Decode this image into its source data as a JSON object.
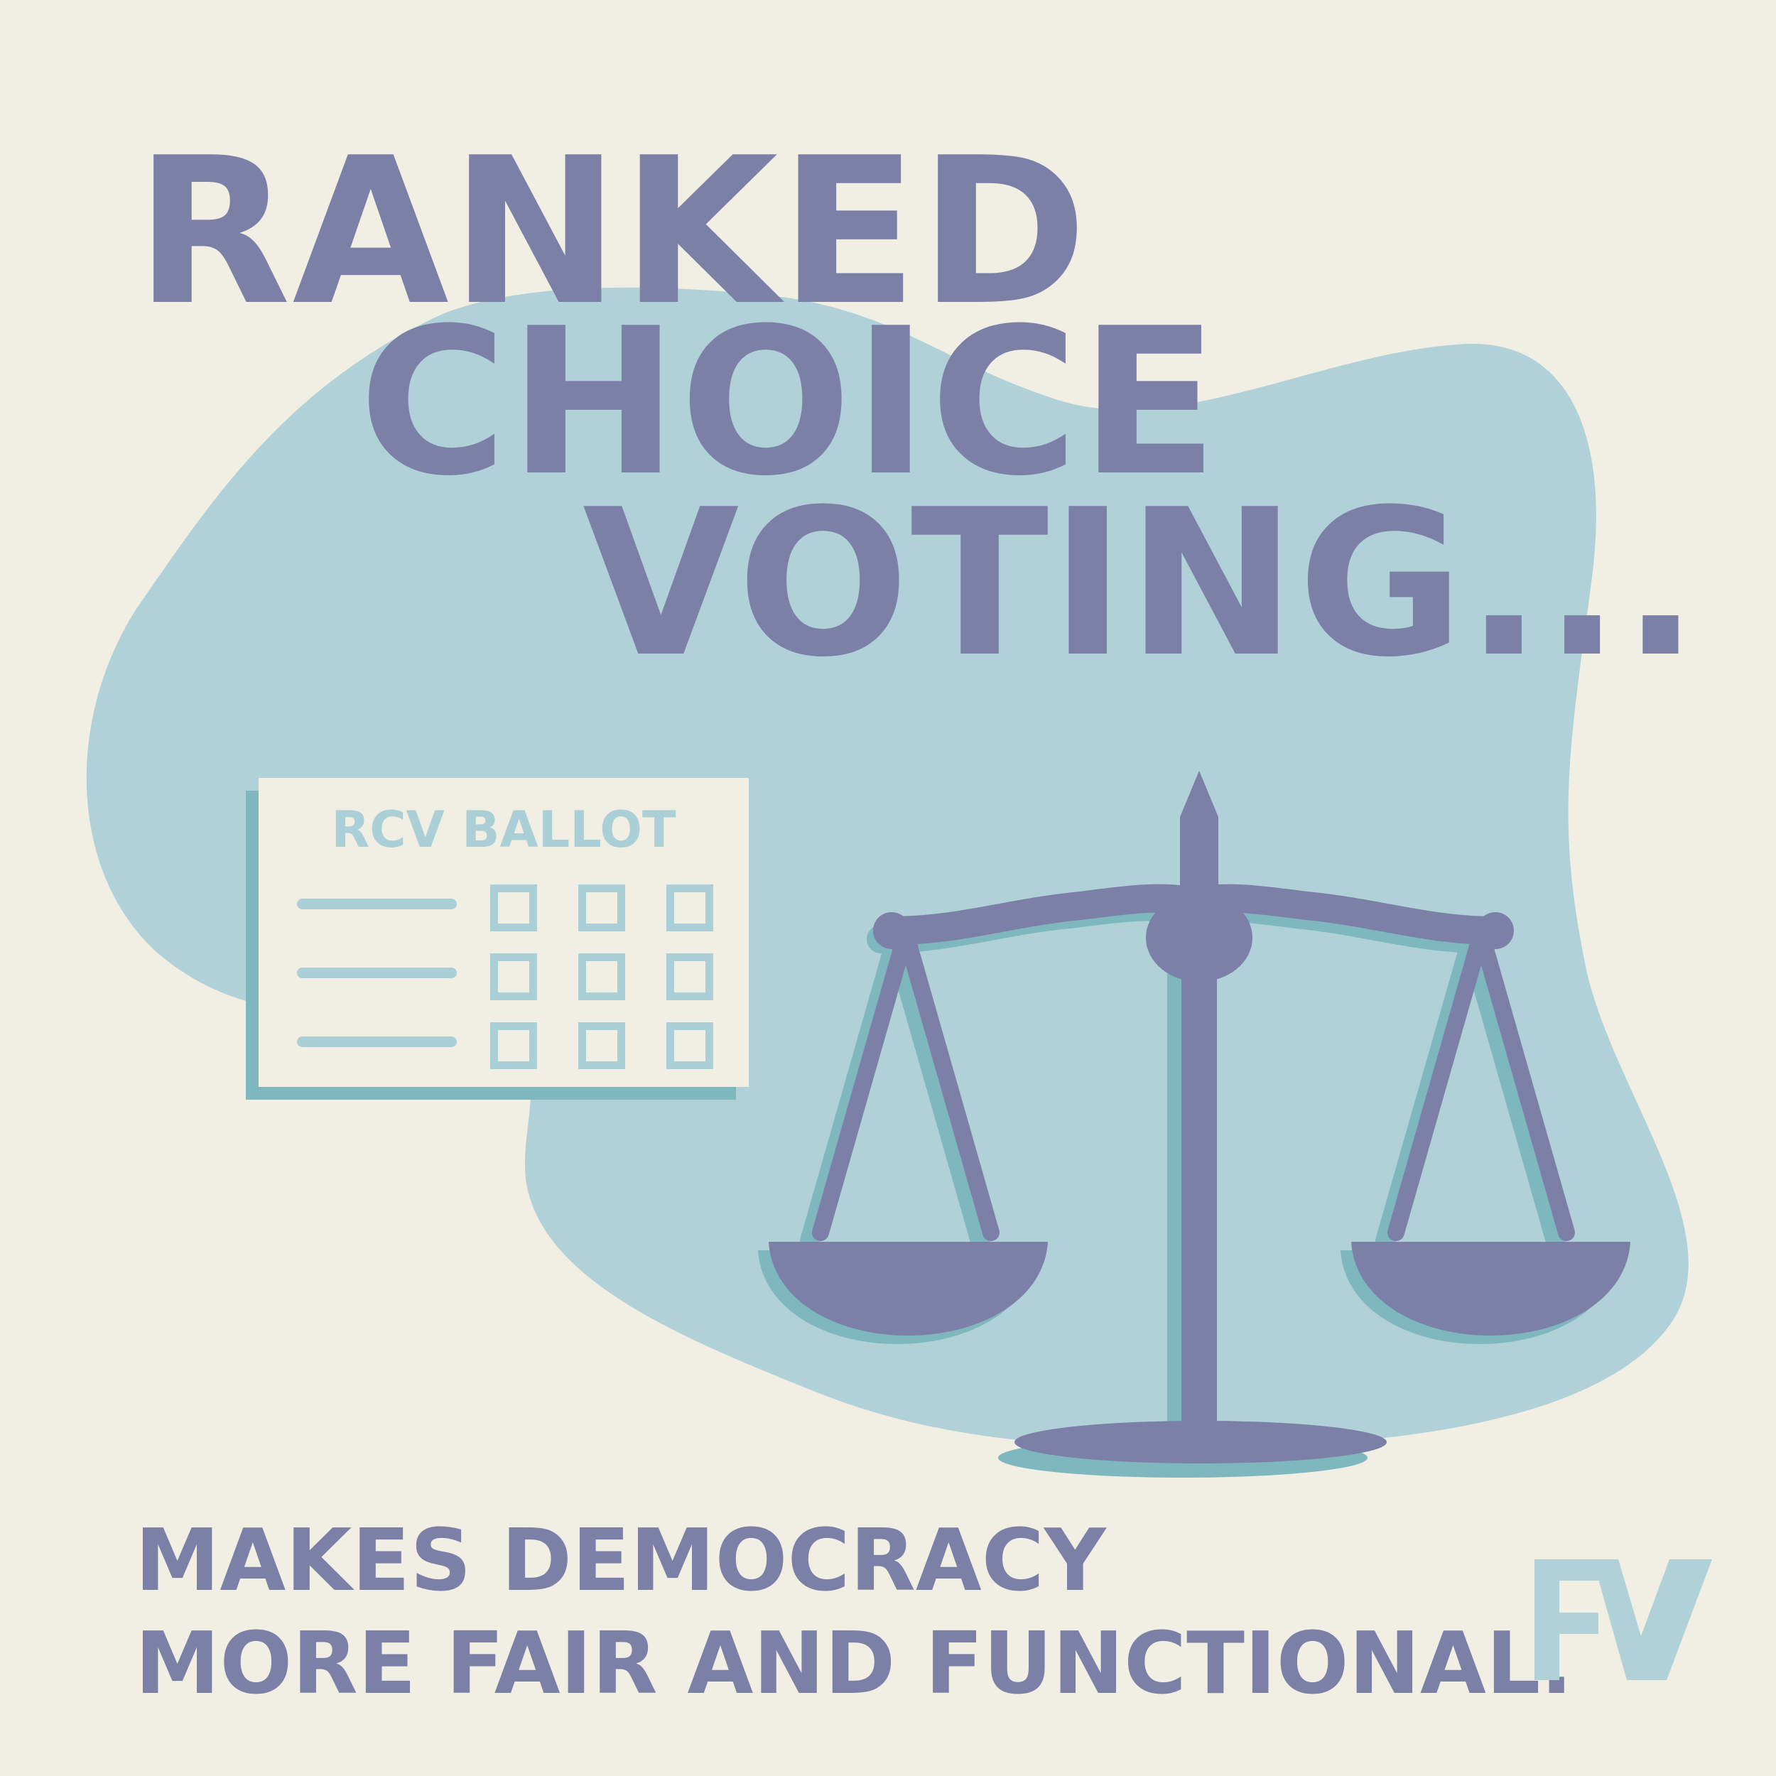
{
  "headline": {
    "line1": "RANKED",
    "line2": "CHOICE",
    "line3": "VOTING..."
  },
  "ballot": {
    "title": "RCV BALLOT",
    "rows": 3,
    "columns": 3
  },
  "tagline": {
    "line1": "MAKES DEMOCRACY",
    "line2": "MORE FAIR AND FUNCTIONAL."
  },
  "logo": {
    "text": "FV"
  },
  "colors": {
    "background": "#f1eee4",
    "blob": "#b0d1d8",
    "headline": "#7c7fa6",
    "scale": "#7c7fa6",
    "scale_shadow": "#7fb7bf",
    "ballot_accent": "#aacfd7",
    "logo": "#b0d1d8"
  },
  "icons": {
    "scale": "balance-scale-icon",
    "logo": "fv-logo-icon"
  }
}
